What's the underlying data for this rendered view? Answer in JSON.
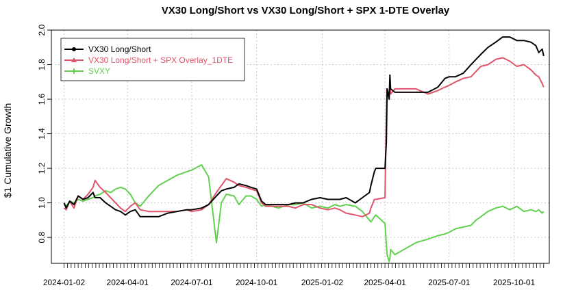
{
  "chart_data": {
    "type": "line",
    "title": "VX30 Long/Short vs VX30 Long/Short + SPX 1-DTE Overlay",
    "xlabel": "",
    "ylabel": "$1 Cumulative Growth",
    "ylim": [
      0.65,
      2.0
    ],
    "yticks": [
      0.8,
      1.0,
      1.2,
      1.4,
      1.6,
      1.8,
      2.0
    ],
    "ytick_labels": [
      "0.8",
      "1.0",
      "1.2",
      "1.4",
      "1.6",
      "1.8",
      "2.0"
    ],
    "xlim": [
      "2023-12-15",
      "2025-11-20"
    ],
    "x_tick_labels": [
      "2024-01-02",
      "2024-04-01",
      "2024-07-01",
      "2024-10-01",
      "2025-01-02",
      "2025-04-01",
      "2025-07-01",
      "2025-10-01"
    ],
    "grid": true,
    "legend_position": "top-left",
    "series": [
      {
        "name": "VX30 Long/Short",
        "color": "#000000",
        "points": [
          [
            "2024-01-02",
            1.0
          ],
          [
            "2024-01-05",
            0.97
          ],
          [
            "2024-01-10",
            1.01
          ],
          [
            "2024-01-16",
            0.99
          ],
          [
            "2024-01-22",
            1.04
          ],
          [
            "2024-01-29",
            1.02
          ],
          [
            "2024-02-05",
            1.03
          ],
          [
            "2024-02-12",
            1.06
          ],
          [
            "2024-02-15",
            1.03
          ],
          [
            "2024-02-22",
            1.03
          ],
          [
            "2024-03-01",
            1.0
          ],
          [
            "2024-03-08",
            0.98
          ],
          [
            "2024-03-15",
            0.96
          ],
          [
            "2024-03-22",
            0.95
          ],
          [
            "2024-03-29",
            0.93
          ],
          [
            "2024-04-05",
            0.95
          ],
          [
            "2024-04-12",
            0.96
          ],
          [
            "2024-04-19",
            0.92
          ],
          [
            "2024-05-01",
            0.92
          ],
          [
            "2024-05-15",
            0.92
          ],
          [
            "2024-05-28",
            0.94
          ],
          [
            "2024-06-10",
            0.95
          ],
          [
            "2024-06-24",
            0.96
          ],
          [
            "2024-07-01",
            0.96
          ],
          [
            "2024-07-15",
            0.97
          ],
          [
            "2024-07-25",
            0.99
          ],
          [
            "2024-08-05",
            1.04
          ],
          [
            "2024-08-12",
            1.07
          ],
          [
            "2024-08-19",
            1.08
          ],
          [
            "2024-08-30",
            1.09
          ],
          [
            "2024-09-06",
            1.11
          ],
          [
            "2024-09-16",
            1.1
          ],
          [
            "2024-09-23",
            1.09
          ],
          [
            "2024-10-01",
            1.08
          ],
          [
            "2024-10-08",
            1.01
          ],
          [
            "2024-10-14",
            0.99
          ],
          [
            "2024-11-01",
            0.99
          ],
          [
            "2024-11-15",
            0.99
          ],
          [
            "2024-11-25",
            1.0
          ],
          [
            "2024-12-06",
            1.0
          ],
          [
            "2024-12-18",
            1.02
          ],
          [
            "2024-12-30",
            1.03
          ],
          [
            "2025-01-10",
            1.02
          ],
          [
            "2025-01-20",
            1.02
          ],
          [
            "2025-01-27",
            1.02
          ],
          [
            "2025-02-05",
            1.03
          ],
          [
            "2025-02-18",
            1.0
          ],
          [
            "2025-02-28",
            1.03
          ],
          [
            "2025-03-10",
            1.06
          ],
          [
            "2025-03-12",
            1.1
          ],
          [
            "2025-03-17",
            1.18
          ],
          [
            "2025-03-19",
            1.2
          ],
          [
            "2025-04-01",
            1.2
          ],
          [
            "2025-04-03",
            1.35
          ],
          [
            "2025-04-04",
            1.66
          ],
          [
            "2025-04-07",
            1.6
          ],
          [
            "2025-04-08",
            1.74
          ],
          [
            "2025-04-09",
            1.66
          ],
          [
            "2025-04-15",
            1.64
          ],
          [
            "2025-05-15",
            1.64
          ],
          [
            "2025-06-01",
            1.64
          ],
          [
            "2025-06-15",
            1.67
          ],
          [
            "2025-06-25",
            1.72
          ],
          [
            "2025-07-01",
            1.73
          ],
          [
            "2025-07-10",
            1.73
          ],
          [
            "2025-07-21",
            1.75
          ],
          [
            "2025-08-01",
            1.8
          ],
          [
            "2025-08-08",
            1.83
          ],
          [
            "2025-08-15",
            1.86
          ],
          [
            "2025-08-25",
            1.9
          ],
          [
            "2025-09-05",
            1.93
          ],
          [
            "2025-09-15",
            1.96
          ],
          [
            "2025-09-25",
            1.96
          ],
          [
            "2025-10-05",
            1.94
          ],
          [
            "2025-10-15",
            1.94
          ],
          [
            "2025-10-25",
            1.93
          ],
          [
            "2025-11-01",
            1.91
          ],
          [
            "2025-11-05",
            1.87
          ],
          [
            "2025-11-10",
            1.89
          ],
          [
            "2025-11-12",
            1.85
          ]
        ]
      },
      {
        "name": "VX30 Long/Short + SPX Overlay_1DTE",
        "color": "#df536b",
        "points": [
          [
            "2024-01-02",
            0.97
          ],
          [
            "2024-01-05",
            0.96
          ],
          [
            "2024-01-10",
            1.01
          ],
          [
            "2024-01-16",
            0.97
          ],
          [
            "2024-01-22",
            1.04
          ],
          [
            "2024-01-29",
            1.02
          ],
          [
            "2024-02-05",
            1.05
          ],
          [
            "2024-02-12",
            1.09
          ],
          [
            "2024-02-15",
            1.13
          ],
          [
            "2024-02-22",
            1.09
          ],
          [
            "2024-03-01",
            1.06
          ],
          [
            "2024-03-08",
            1.03
          ],
          [
            "2024-03-15",
            1.0
          ],
          [
            "2024-03-22",
            0.97
          ],
          [
            "2024-03-29",
            0.95
          ],
          [
            "2024-04-05",
            0.98
          ],
          [
            "2024-04-12",
            1.0
          ],
          [
            "2024-04-19",
            0.96
          ],
          [
            "2024-05-01",
            0.95
          ],
          [
            "2024-05-15",
            0.95
          ],
          [
            "2024-05-28",
            0.95
          ],
          [
            "2024-06-10",
            0.95
          ],
          [
            "2024-06-24",
            0.96
          ],
          [
            "2024-07-01",
            0.95
          ],
          [
            "2024-07-15",
            0.96
          ],
          [
            "2024-07-25",
            0.99
          ],
          [
            "2024-08-05",
            1.06
          ],
          [
            "2024-08-12",
            1.1
          ],
          [
            "2024-08-19",
            1.14
          ],
          [
            "2024-08-30",
            1.12
          ],
          [
            "2024-09-06",
            1.1
          ],
          [
            "2024-09-16",
            1.09
          ],
          [
            "2024-09-23",
            1.08
          ],
          [
            "2024-10-01",
            1.07
          ],
          [
            "2024-10-08",
            1.0
          ],
          [
            "2024-10-14",
            0.98
          ],
          [
            "2024-11-01",
            0.98
          ],
          [
            "2024-11-15",
            0.98
          ],
          [
            "2024-11-25",
            0.97
          ],
          [
            "2024-12-06",
            0.99
          ],
          [
            "2024-12-18",
            0.99
          ],
          [
            "2024-12-30",
            0.97
          ],
          [
            "2025-01-10",
            0.96
          ],
          [
            "2025-01-20",
            0.97
          ],
          [
            "2025-01-27",
            0.96
          ],
          [
            "2025-02-05",
            0.94
          ],
          [
            "2025-02-18",
            0.93
          ],
          [
            "2025-02-28",
            0.92
          ],
          [
            "2025-03-10",
            0.94
          ],
          [
            "2025-03-12",
            0.97
          ],
          [
            "2025-03-17",
            1.02
          ],
          [
            "2025-03-19",
            1.02
          ],
          [
            "2025-04-01",
            1.03
          ],
          [
            "2025-04-03",
            1.5
          ],
          [
            "2025-04-04",
            1.66
          ],
          [
            "2025-04-07",
            1.62
          ],
          [
            "2025-04-08",
            1.69
          ],
          [
            "2025-04-09",
            1.63
          ],
          [
            "2025-04-15",
            1.66
          ],
          [
            "2025-05-15",
            1.66
          ],
          [
            "2025-06-01",
            1.63
          ],
          [
            "2025-06-15",
            1.65
          ],
          [
            "2025-06-25",
            1.67
          ],
          [
            "2025-07-01",
            1.68
          ],
          [
            "2025-07-10",
            1.7
          ],
          [
            "2025-07-21",
            1.72
          ],
          [
            "2025-08-01",
            1.73
          ],
          [
            "2025-08-08",
            1.76
          ],
          [
            "2025-08-15",
            1.79
          ],
          [
            "2025-08-25",
            1.8
          ],
          [
            "2025-09-05",
            1.83
          ],
          [
            "2025-09-15",
            1.84
          ],
          [
            "2025-09-25",
            1.82
          ],
          [
            "2025-10-05",
            1.79
          ],
          [
            "2025-10-15",
            1.8
          ],
          [
            "2025-10-25",
            1.77
          ],
          [
            "2025-11-01",
            1.74
          ],
          [
            "2025-11-05",
            1.73
          ],
          [
            "2025-11-10",
            1.69
          ],
          [
            "2025-11-12",
            1.67
          ]
        ]
      },
      {
        "name": "SVXY",
        "color": "#61d04f",
        "points": [
          [
            "2024-01-02",
            1.0
          ],
          [
            "2024-01-05",
            0.98
          ],
          [
            "2024-01-10",
            1.01
          ],
          [
            "2024-01-16",
            1.0
          ],
          [
            "2024-01-22",
            1.02
          ],
          [
            "2024-01-29",
            1.01
          ],
          [
            "2024-02-05",
            1.02
          ],
          [
            "2024-02-12",
            1.03
          ],
          [
            "2024-02-15",
            1.04
          ],
          [
            "2024-02-22",
            1.05
          ],
          [
            "2024-03-01",
            1.07
          ],
          [
            "2024-03-08",
            1.06
          ],
          [
            "2024-03-15",
            1.08
          ],
          [
            "2024-03-22",
            1.09
          ],
          [
            "2024-03-29",
            1.08
          ],
          [
            "2024-04-05",
            1.05
          ],
          [
            "2024-04-12",
            1.0
          ],
          [
            "2024-04-19",
            0.98
          ],
          [
            "2024-05-01",
            1.04
          ],
          [
            "2024-05-15",
            1.1
          ],
          [
            "2024-05-28",
            1.13
          ],
          [
            "2024-06-10",
            1.16
          ],
          [
            "2024-06-24",
            1.18
          ],
          [
            "2024-07-01",
            1.19
          ],
          [
            "2024-07-15",
            1.22
          ],
          [
            "2024-07-25",
            1.15
          ],
          [
            "2024-08-05",
            0.77
          ],
          [
            "2024-08-12",
            1.0
          ],
          [
            "2024-08-19",
            1.05
          ],
          [
            "2024-08-30",
            1.04
          ],
          [
            "2024-09-06",
            0.99
          ],
          [
            "2024-09-16",
            1.04
          ],
          [
            "2024-09-23",
            1.04
          ],
          [
            "2024-10-01",
            1.02
          ],
          [
            "2024-10-08",
            0.98
          ],
          [
            "2024-10-14",
            0.99
          ],
          [
            "2024-11-01",
            0.97
          ],
          [
            "2024-11-15",
            0.99
          ],
          [
            "2024-11-25",
            0.99
          ],
          [
            "2024-12-06",
            1.0
          ],
          [
            "2024-12-18",
            0.97
          ],
          [
            "2024-12-30",
            0.98
          ],
          [
            "2025-01-10",
            0.97
          ],
          [
            "2025-01-20",
            0.99
          ],
          [
            "2025-01-27",
            0.98
          ],
          [
            "2025-02-05",
            0.99
          ],
          [
            "2025-02-18",
            0.98
          ],
          [
            "2025-02-28",
            0.95
          ],
          [
            "2025-03-10",
            0.9
          ],
          [
            "2025-03-12",
            0.89
          ],
          [
            "2025-03-17",
            0.92
          ],
          [
            "2025-03-19",
            0.93
          ],
          [
            "2025-04-01",
            0.88
          ],
          [
            "2025-04-03",
            0.76
          ],
          [
            "2025-04-04",
            0.7
          ],
          [
            "2025-04-07",
            0.66
          ],
          [
            "2025-04-08",
            0.68
          ],
          [
            "2025-04-09",
            0.73
          ],
          [
            "2025-04-15",
            0.7
          ],
          [
            "2025-05-15",
            0.77
          ],
          [
            "2025-06-01",
            0.79
          ],
          [
            "2025-06-15",
            0.81
          ],
          [
            "2025-06-25",
            0.82
          ],
          [
            "2025-07-01",
            0.83
          ],
          [
            "2025-07-10",
            0.85
          ],
          [
            "2025-07-21",
            0.86
          ],
          [
            "2025-08-01",
            0.87
          ],
          [
            "2025-08-08",
            0.9
          ],
          [
            "2025-08-15",
            0.92
          ],
          [
            "2025-08-25",
            0.95
          ],
          [
            "2025-09-05",
            0.97
          ],
          [
            "2025-09-15",
            0.98
          ],
          [
            "2025-09-25",
            0.96
          ],
          [
            "2025-10-05",
            0.98
          ],
          [
            "2025-10-15",
            0.95
          ],
          [
            "2025-10-25",
            0.96
          ],
          [
            "2025-11-01",
            0.95
          ],
          [
            "2025-11-05",
            0.96
          ],
          [
            "2025-11-10",
            0.94
          ],
          [
            "2025-11-12",
            0.95
          ]
        ]
      }
    ]
  }
}
